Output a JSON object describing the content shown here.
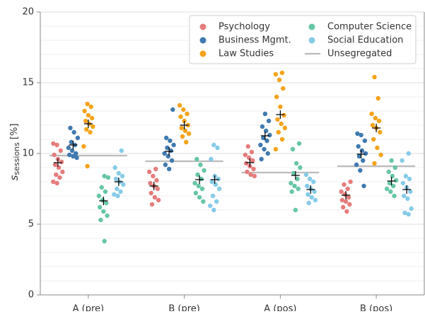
{
  "chart_data": {
    "type": "strip",
    "y_label_symbol": "s",
    "y_label_subscript": "sessions",
    "y_label_unit": "[%]",
    "categories": [
      "A (pre)",
      "B (pre)",
      "A (pos)",
      "B (pos)"
    ],
    "ylim": [
      0,
      20
    ],
    "yticks": [
      0,
      5,
      10,
      15,
      20
    ],
    "grid": true,
    "minor_grid_step": 1,
    "legend_position": "upper right",
    "series": [
      {
        "name": "Psychology",
        "color": "#e77c7c",
        "values": [
          [
            10.7,
            10.6,
            10.2,
            9.9,
            9.6,
            9.4,
            9.2,
            9.0,
            8.7,
            8.5,
            8.3,
            8.0,
            7.9
          ],
          [
            8.9,
            8.7,
            8.4,
            8.1,
            7.9,
            7.7,
            7.5,
            7.2,
            6.9,
            6.7,
            6.4
          ],
          [
            10.5,
            10.1,
            9.9,
            9.7,
            9.5,
            9.3,
            9.1,
            8.9,
            8.7,
            8.5,
            8.4
          ],
          [
            8.0,
            7.8,
            7.5,
            7.3,
            7.1,
            6.9,
            6.7,
            6.6,
            6.4,
            6.2,
            5.9
          ]
        ],
        "means": [
          9.35,
          7.7,
          9.35,
          7.05
        ]
      },
      {
        "name": "Business Mgmt.",
        "color": "#3f7ab0",
        "values": [
          [
            11.8,
            11.5,
            11.1,
            10.8,
            10.6,
            10.4,
            10.2,
            10.0,
            9.9,
            9.8,
            9.7
          ],
          [
            13.1,
            11.1,
            10.9,
            10.6,
            10.4,
            10.2,
            10.0,
            9.8,
            9.5,
            9.2,
            8.9
          ],
          [
            12.8,
            12.3,
            11.9,
            11.6,
            11.3,
            11.1,
            10.9,
            10.6,
            10.3,
            10.0,
            9.6
          ],
          [
            11.4,
            11.3,
            10.9,
            10.5,
            10.2,
            10.0,
            9.8,
            9.5,
            9.2,
            8.8,
            7.7
          ]
        ],
        "means": [
          10.6,
          10.15,
          11.25,
          9.95
        ]
      },
      {
        "name": "Law Studies",
        "color": "#f5a31a",
        "values": [
          [
            13.5,
            13.3,
            13.0,
            12.7,
            12.5,
            12.3,
            12.1,
            11.9,
            11.7,
            11.5,
            10.5,
            9.1
          ],
          [
            13.4,
            13.1,
            12.8,
            12.6,
            12.3,
            12.0,
            11.8,
            11.6,
            11.4,
            11.2,
            10.8
          ],
          [
            15.7,
            15.6,
            15.2,
            14.6,
            14.0,
            13.3,
            12.7,
            12.4,
            12.1,
            11.8,
            11.5,
            11.0,
            10.3
          ],
          [
            15.4,
            13.9,
            12.8,
            12.5,
            12.3,
            12.0,
            11.8,
            11.5,
            11.0,
            10.4,
            9.9,
            9.3
          ]
        ],
        "means": [
          12.1,
          12.0,
          12.75,
          11.8
        ]
      },
      {
        "name": "Computer Science",
        "color": "#66c6a5",
        "values": [
          [
            8.4,
            8.3,
            7.6,
            7.3,
            7.0,
            6.7,
            6.5,
            6.2,
            5.9,
            5.6,
            5.3,
            3.8
          ],
          [
            9.6,
            9.2,
            8.8,
            8.5,
            8.2,
            7.9,
            7.7,
            7.5,
            7.2,
            6.9,
            6.6
          ],
          [
            10.7,
            10.3,
            9.3,
            9.0,
            8.6,
            8.2,
            7.9,
            7.7,
            7.5,
            7.3,
            6.0
          ],
          [
            9.5,
            9.0,
            8.7,
            8.4,
            8.1,
            7.9,
            7.7,
            7.5,
            7.3,
            7.0
          ]
        ],
        "means": [
          6.65,
          8.15,
          8.45,
          8.05
        ]
      },
      {
        "name": "Social Education",
        "color": "#86cbe8",
        "values": [
          [
            10.2,
            9.0,
            8.6,
            8.4,
            8.2,
            8.0,
            7.8,
            7.5,
            7.3,
            7.1,
            7.0
          ],
          [
            10.6,
            10.4,
            9.6,
            8.4,
            8.2,
            8.0,
            7.8,
            7.5,
            7.0,
            6.6,
            6.3,
            6.0
          ],
          [
            8.5,
            8.2,
            8.0,
            7.7,
            7.5,
            7.3,
            7.1,
            6.9,
            6.7,
            6.5
          ],
          [
            10.0,
            9.5,
            8.4,
            8.2,
            7.9,
            7.6,
            7.3,
            7.0,
            6.8,
            6.1,
            5.8,
            5.7
          ]
        ],
        "means": [
          8.0,
          8.15,
          7.45,
          7.45
        ]
      }
    ],
    "unsegregated": {
      "name": "Unsegregated",
      "color": "#bbbbbb",
      "values": [
        9.85,
        9.45,
        8.65,
        9.1
      ]
    }
  }
}
